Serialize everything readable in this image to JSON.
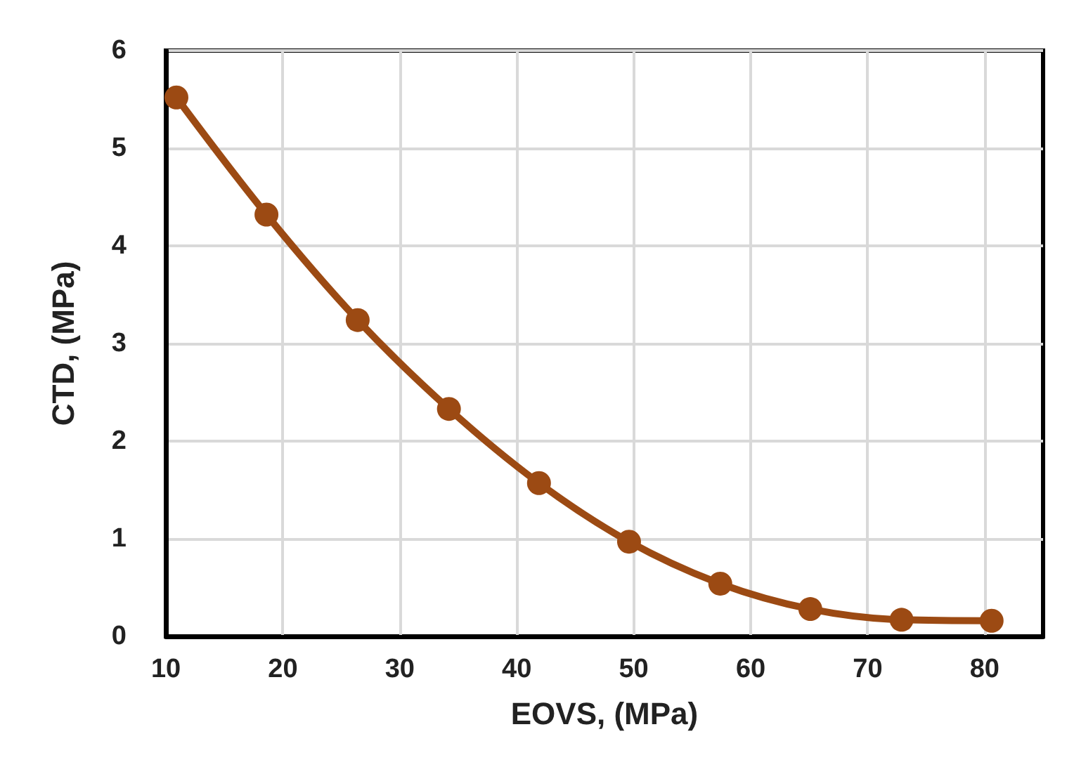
{
  "chart_data": {
    "type": "line",
    "xlabel": "EOVS, (MPa)",
    "ylabel": "CTD, (MPa)",
    "x": [
      10.9,
      18.6,
      26.4,
      34.2,
      41.9,
      49.6,
      57.4,
      65.1,
      72.9,
      80.6
    ],
    "series": [
      {
        "color": "#9c4a13",
        "values": [
          5.52,
          4.32,
          3.24,
          2.33,
          1.57,
          0.97,
          0.54,
          0.28,
          0.17,
          0.16
        ]
      }
    ],
    "xlim": [
      10,
      85
    ],
    "xticks": [
      10,
      20,
      30,
      40,
      50,
      60,
      70,
      80
    ],
    "ylim": [
      0,
      6
    ],
    "yticks": [
      0,
      1,
      2,
      3,
      4,
      5,
      6
    ],
    "grid": true,
    "marker": "circle",
    "line_style": "solid"
  }
}
